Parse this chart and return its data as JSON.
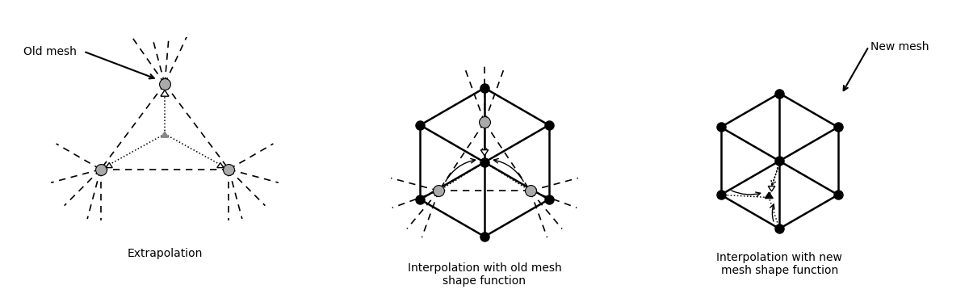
{
  "fig_width": 12.0,
  "fig_height": 3.74,
  "bg_color": "#ffffff",
  "panel_titles": [
    "Extrapolation",
    "Interpolation with old mesh\nshape function",
    "Interpolation with new\nmesh shape function"
  ],
  "old_mesh_label": "Old mesh",
  "new_mesh_label": "New mesh",
  "node_color_gray": "#aaaaaa",
  "hex_R": 0.78
}
